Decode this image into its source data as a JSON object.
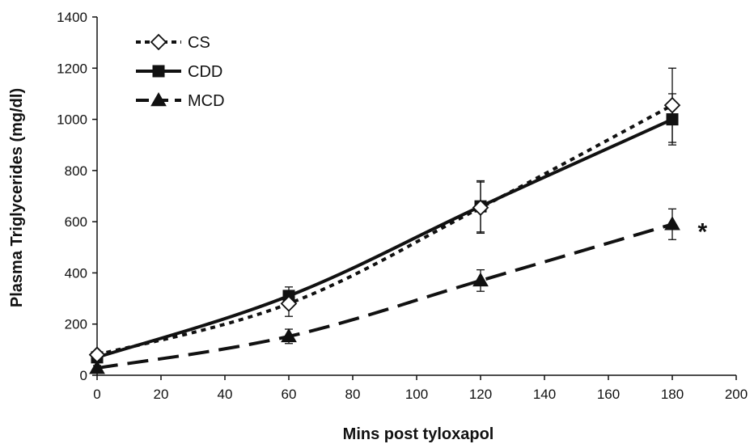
{
  "chart_data": {
    "type": "line",
    "title": "",
    "xlabel": "Mins post tyloxapol",
    "ylabel": "Plasma Triglycerides (mg/dl)",
    "xlim": [
      0,
      200
    ],
    "ylim": [
      0,
      1400
    ],
    "x_ticks": [
      0,
      20,
      40,
      60,
      80,
      100,
      120,
      140,
      160,
      180,
      200
    ],
    "y_ticks": [
      0,
      200,
      400,
      600,
      800,
      1000,
      1200,
      1400
    ],
    "x_tick_labels": [
      "0",
      "20",
      "40",
      "60",
      "80",
      "100",
      "120",
      "140",
      "160",
      "180",
      "200"
    ],
    "y_tick_labels": [
      "0",
      "200",
      "400",
      "600",
      "800",
      "1000",
      "1200",
      "1400"
    ],
    "grid": false,
    "legend_position": "top-left",
    "x": [
      0,
      60,
      120,
      180
    ],
    "series": [
      {
        "name": "CS",
        "values": [
          80,
          280,
          655,
          1055
        ],
        "errors": [
          15,
          50,
          100,
          145
        ],
        "marker": "diamond-open",
        "line_style": "dotted",
        "color": "#111111"
      },
      {
        "name": "CDD",
        "values": [
          70,
          310,
          660,
          1000
        ],
        "errors": [
          10,
          35,
          100,
          100
        ],
        "marker": "square",
        "line_style": "solid",
        "color": "#111111"
      },
      {
        "name": "MCD",
        "values": [
          28,
          152,
          370,
          590
        ],
        "errors": [
          10,
          28,
          42,
          60
        ],
        "marker": "triangle",
        "line_style": "dashed",
        "color": "#111111"
      }
    ],
    "annotations": [
      {
        "text": "*",
        "x": 190,
        "y": 590
      }
    ]
  }
}
